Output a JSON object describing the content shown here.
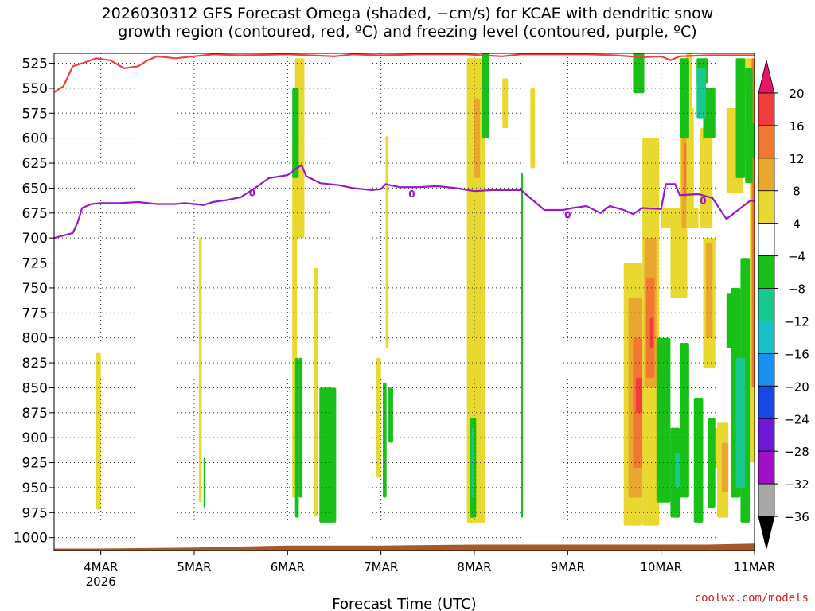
{
  "title": {
    "line1": "2026030312 GFS Forecast Omega (shaded, −cm/s) for KCAE with dendritic snow",
    "line2": "growth region (contoured, red, ºC) and freezing level (contoured, purple, ºC)"
  },
  "watermark": "coolwx.com/models",
  "chart_data": {
    "type": "heatmap",
    "xlabel": "Forecast Time (UTC)",
    "x_ticks": [
      "4MAR",
      "5MAR",
      "6MAR",
      "7MAR",
      "8MAR",
      "9MAR",
      "10MAR",
      "11MAR"
    ],
    "x_tick_sublabel": "2026",
    "x_range_days": [
      -0.5,
      7.0
    ],
    "y_ticks": [
      525,
      550,
      575,
      600,
      625,
      650,
      675,
      700,
      725,
      750,
      775,
      800,
      825,
      850,
      875,
      900,
      925,
      950,
      975,
      1000
    ],
    "y_range_hpa": [
      515,
      1013
    ],
    "grid": true,
    "colorbar": {
      "labels": [
        "20",
        "16",
        "12",
        "8",
        "4",
        "−4",
        "−8",
        "−12",
        "−16",
        "−20",
        "−24",
        "−28",
        "−32",
        "−36"
      ],
      "colors": [
        "#e8156d",
        "#f03c3c",
        "#f07830",
        "#e8a830",
        "#e8d830",
        "#ffffff",
        "#18c018",
        "#18c890",
        "#18c0c8",
        "#1890f0",
        "#1848e8",
        "#7018d8",
        "#a010c8",
        "#a8a8a8",
        "#000000"
      ]
    },
    "freezing_level_label": "0",
    "freezing_level": [
      [
        -0.5,
        700
      ],
      [
        -0.3,
        695
      ],
      [
        -0.25,
        685
      ],
      [
        -0.2,
        670
      ],
      [
        -0.1,
        666
      ],
      [
        0.0,
        665
      ],
      [
        0.2,
        665
      ],
      [
        0.4,
        664
      ],
      [
        0.6,
        666
      ],
      [
        0.8,
        666
      ],
      [
        0.9,
        665
      ],
      [
        1.0,
        666
      ],
      [
        1.1,
        667
      ],
      [
        1.2,
        664
      ],
      [
        1.35,
        662
      ],
      [
        1.5,
        659
      ],
      [
        1.65,
        650
      ],
      [
        1.8,
        640
      ],
      [
        2.0,
        637
      ],
      [
        2.1,
        630
      ],
      [
        2.15,
        627
      ],
      [
        2.2,
        638
      ],
      [
        2.35,
        645
      ],
      [
        2.55,
        647
      ],
      [
        2.7,
        650
      ],
      [
        2.9,
        652
      ],
      [
        3.0,
        651
      ],
      [
        3.05,
        646
      ],
      [
        3.2,
        649
      ],
      [
        3.4,
        649
      ],
      [
        3.6,
        648
      ],
      [
        3.8,
        650
      ],
      [
        4.0,
        653
      ],
      [
        4.2,
        652
      ],
      [
        4.5,
        652
      ],
      [
        4.6,
        660
      ],
      [
        4.75,
        672
      ],
      [
        4.95,
        672
      ],
      [
        5.05,
        670
      ],
      [
        5.2,
        668
      ],
      [
        5.35,
        675
      ],
      [
        5.45,
        668
      ],
      [
        5.6,
        672
      ],
      [
        5.7,
        676
      ],
      [
        5.8,
        670
      ],
      [
        6.0,
        671
      ],
      [
        6.05,
        646
      ],
      [
        6.15,
        646
      ],
      [
        6.2,
        657
      ],
      [
        6.4,
        656
      ],
      [
        6.55,
        660
      ],
      [
        6.7,
        681
      ],
      [
        6.95,
        663
      ],
      [
        7.0,
        663
      ]
    ],
    "dgz_upper_boundary": [
      [
        -0.5,
        554
      ],
      [
        -0.4,
        548
      ],
      [
        -0.3,
        528
      ],
      [
        -0.2,
        525
      ],
      [
        -0.05,
        520
      ],
      [
        0.1,
        522
      ],
      [
        0.25,
        530
      ],
      [
        0.4,
        528
      ],
      [
        0.5,
        522
      ],
      [
        0.6,
        518
      ],
      [
        0.8,
        520
      ],
      [
        1.0,
        518
      ],
      [
        1.2,
        516
      ],
      [
        1.5,
        517
      ],
      [
        2.0,
        516
      ],
      [
        2.5,
        518
      ],
      [
        2.7,
        516
      ],
      [
        3.0,
        517
      ],
      [
        3.4,
        516
      ],
      [
        3.9,
        516
      ],
      [
        4.3,
        518
      ],
      [
        4.5,
        516
      ],
      [
        5.2,
        516
      ],
      [
        5.5,
        517
      ],
      [
        5.8,
        519
      ],
      [
        6.0,
        518
      ],
      [
        6.1,
        522
      ],
      [
        6.2,
        518
      ],
      [
        6.5,
        517
      ],
      [
        7.0,
        517
      ]
    ],
    "omega_regions": [
      {
        "value": 4,
        "x": [
          -0.05,
          -0.0
        ],
        "p": [
          815,
          972
        ]
      },
      {
        "value": 4,
        "x": [
          1.05,
          1.08
        ],
        "p": [
          700,
          965
        ]
      },
      {
        "value": 4,
        "x": [
          2.05,
          2.1
        ],
        "p": [
          605,
          960
        ]
      },
      {
        "value": 4,
        "x": [
          2.08,
          2.18
        ],
        "p": [
          520,
          700
        ]
      },
      {
        "value": 4,
        "x": [
          2.28,
          2.33
        ],
        "p": [
          730,
          978
        ]
      },
      {
        "value": 4,
        "x": [
          2.45,
          2.5
        ],
        "p": [
          870,
          970
        ]
      },
      {
        "value": 4,
        "x": [
          2.95,
          3.0
        ],
        "p": [
          820,
          940
        ]
      },
      {
        "value": 4,
        "x": [
          3.05,
          3.08
        ],
        "p": [
          598,
          810
        ]
      },
      {
        "value": 4,
        "x": [
          3.92,
          4.12
        ],
        "p": [
          520,
          985
        ]
      },
      {
        "value": 8,
        "x": [
          4.0,
          4.06
        ],
        "p": [
          560,
          640
        ]
      },
      {
        "value": 4,
        "x": [
          4.3,
          4.36
        ],
        "p": [
          540,
          590
        ]
      },
      {
        "value": 4,
        "x": [
          4.6,
          4.65
        ],
        "p": [
          550,
          630
        ]
      },
      {
        "value": 4,
        "x": [
          5.6,
          5.8
        ],
        "p": [
          725,
          988
        ]
      },
      {
        "value": 8,
        "x": [
          5.65,
          5.8
        ],
        "p": [
          760,
          960
        ]
      },
      {
        "value": 12,
        "x": [
          5.7,
          5.8
        ],
        "p": [
          800,
          930
        ]
      },
      {
        "value": 16,
        "x": [
          5.73,
          5.8
        ],
        "p": [
          840,
          875
        ]
      },
      {
        "value": 4,
        "x": [
          5.8,
          5.98
        ],
        "p": [
          600,
          988
        ]
      },
      {
        "value": 8,
        "x": [
          5.82,
          5.95
        ],
        "p": [
          700,
          850
        ]
      },
      {
        "value": 12,
        "x": [
          5.84,
          5.93
        ],
        "p": [
          740,
          840
        ]
      },
      {
        "value": 16,
        "x": [
          5.88,
          5.92
        ],
        "p": [
          780,
          810
        ]
      },
      {
        "value": 4,
        "x": [
          6.0,
          6.4
        ],
        "p": [
          670,
          690
        ]
      },
      {
        "value": 4,
        "x": [
          6.1,
          6.28
        ],
        "p": [
          690,
          760
        ]
      },
      {
        "value": 4,
        "x": [
          6.2,
          6.35
        ],
        "p": [
          570,
          690
        ]
      },
      {
        "value": 8,
        "x": [
          6.22,
          6.32
        ],
        "p": [
          600,
          690
        ]
      },
      {
        "value": 12,
        "x": [
          6.25,
          6.3
        ],
        "p": [
          605,
          660
        ]
      },
      {
        "value": 4,
        "x": [
          6.27,
          6.33
        ],
        "p": [
          515,
          690
        ]
      },
      {
        "value": 4,
        "x": [
          6.42,
          6.55
        ],
        "p": [
          590,
          690
        ]
      },
      {
        "value": 4,
        "x": [
          6.45,
          6.58
        ],
        "p": [
          700,
          830
        ]
      },
      {
        "value": 8,
        "x": [
          6.48,
          6.55
        ],
        "p": [
          705,
          800
        ]
      },
      {
        "value": 4,
        "x": [
          6.55,
          6.62
        ],
        "p": [
          890,
          930
        ]
      },
      {
        "value": 4,
        "x": [
          6.6,
          6.72
        ],
        "p": [
          885,
          980
        ]
      },
      {
        "value": 8,
        "x": [
          6.65,
          6.72
        ],
        "p": [
          905,
          955
        ]
      },
      {
        "value": 4,
        "x": [
          6.7,
          6.88
        ],
        "p": [
          570,
          655
        ]
      },
      {
        "value": 4,
        "x": [
          6.88,
          6.98
        ],
        "p": [
          520,
          555
        ]
      },
      {
        "value": 4,
        "x": [
          6.88,
          6.95
        ],
        "p": [
          590,
          620
        ]
      },
      {
        "value": 4,
        "x": [
          6.95,
          7.0
        ],
        "p": [
          520,
          925
        ]
      },
      {
        "value": 12,
        "x": [
          6.97,
          7.0
        ],
        "p": [
          520,
          850
        ]
      },
      {
        "value": -4,
        "x": [
          2.05,
          2.12
        ],
        "p": [
          550,
          640
        ]
      },
      {
        "value": -4,
        "x": [
          2.08,
          2.12
        ],
        "p": [
          820,
          980
        ]
      },
      {
        "value": -4,
        "x": [
          2.12,
          2.16
        ],
        "p": [
          820,
          960
        ]
      },
      {
        "value": -4,
        "x": [
          2.34,
          2.52
        ],
        "p": [
          850,
          985
        ]
      },
      {
        "value": -4,
        "x": [
          1.1,
          1.12
        ],
        "p": [
          920,
          970
        ]
      },
      {
        "value": -4,
        "x": [
          3.02,
          3.06
        ],
        "p": [
          845,
          960
        ]
      },
      {
        "value": -4,
        "x": [
          3.08,
          3.13
        ],
        "p": [
          850,
          905
        ]
      },
      {
        "value": -4,
        "x": [
          3.95,
          4.02
        ],
        "p": [
          880,
          980
        ]
      },
      {
        "value": -8,
        "x": [
          3.97,
          4.0
        ],
        "p": [
          890,
          960
        ]
      },
      {
        "value": -4,
        "x": [
          4.08,
          4.16
        ],
        "p": [
          515,
          600
        ]
      },
      {
        "value": -4,
        "x": [
          4.5,
          4.52
        ],
        "p": [
          635,
          980
        ]
      },
      {
        "value": -4,
        "x": [
          5.7,
          5.82
        ],
        "p": [
          515,
          555
        ]
      },
      {
        "value": -4,
        "x": [
          5.95,
          6.1
        ],
        "p": [
          800,
          965
        ]
      },
      {
        "value": -4,
        "x": [
          6.1,
          6.2
        ],
        "p": [
          890,
          980
        ]
      },
      {
        "value": -8,
        "x": [
          6.15,
          6.2
        ],
        "p": [
          915,
          950
        ]
      },
      {
        "value": -4,
        "x": [
          6.2,
          6.3
        ],
        "p": [
          805,
          960
        ]
      },
      {
        "value": -4,
        "x": [
          6.35,
          6.45
        ],
        "p": [
          860,
          985
        ]
      },
      {
        "value": -4,
        "x": [
          6.5,
          6.58
        ],
        "p": [
          880,
          970
        ]
      },
      {
        "value": -4,
        "x": [
          6.38,
          6.5
        ],
        "p": [
          520,
          545
        ]
      },
      {
        "value": -4,
        "x": [
          6.45,
          6.58
        ],
        "p": [
          550,
          600
        ]
      },
      {
        "value": -8,
        "x": [
          6.38,
          6.48
        ],
        "p": [
          530,
          580
        ]
      },
      {
        "value": -4,
        "x": [
          6.9,
          6.98
        ],
        "p": [
          530,
          645
        ]
      },
      {
        "value": -4,
        "x": [
          6.9,
          7.0
        ],
        "p": [
          585,
          620
        ]
      },
      {
        "value": -4,
        "x": [
          6.2,
          6.3
        ],
        "p": [
          520,
          600
        ]
      },
      {
        "value": -4,
        "x": [
          6.75,
          6.85
        ],
        "p": [
          750,
          960
        ]
      },
      {
        "value": -4,
        "x": [
          6.85,
          6.95
        ],
        "p": [
          720,
          985
        ]
      },
      {
        "value": -8,
        "x": [
          6.8,
          6.9
        ],
        "p": [
          820,
          950
        ]
      },
      {
        "value": -4,
        "x": [
          6.7,
          6.78
        ],
        "p": [
          755,
          810
        ]
      },
      {
        "value": -4,
        "x": [
          6.8,
          6.9
        ],
        "p": [
          520,
          640
        ]
      }
    ]
  }
}
